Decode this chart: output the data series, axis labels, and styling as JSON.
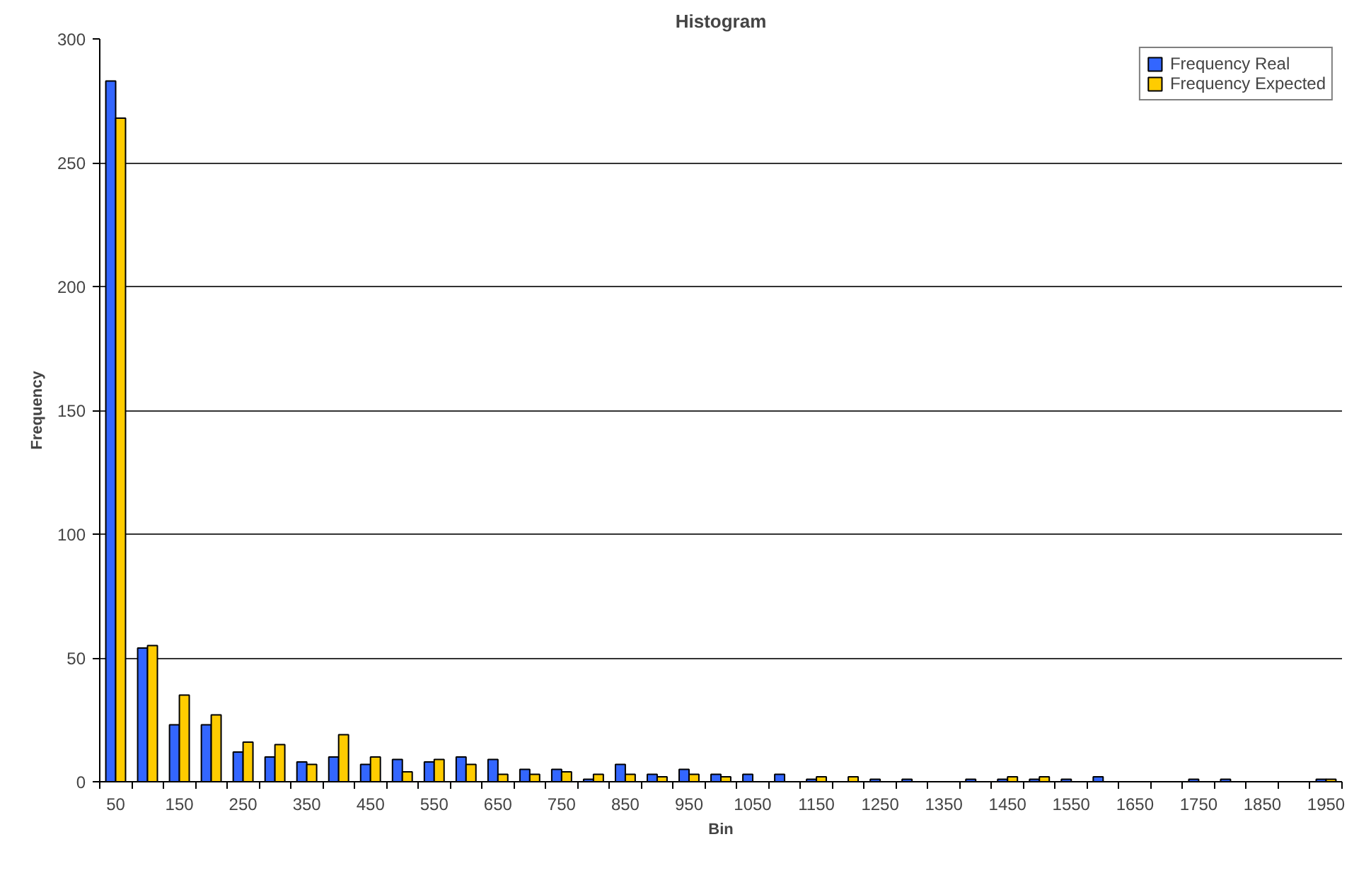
{
  "chart_data": {
    "type": "bar",
    "title": "Histogram",
    "xlabel": "Bin",
    "ylabel": "Frequency",
    "categories": [
      "50",
      null,
      "150",
      null,
      "250",
      null,
      "350",
      null,
      "450",
      null,
      "550",
      null,
      "650",
      null,
      "750",
      null,
      "850",
      null,
      "950",
      null,
      "1050",
      null,
      "1150",
      null,
      "1250",
      null,
      "1350",
      null,
      "1450",
      null,
      "1550",
      null,
      "1650",
      null,
      "1750",
      null,
      "1850",
      null,
      "1950"
    ],
    "series": [
      {
        "name": "Frequency Real",
        "color": "#3366ff",
        "values": [
          283,
          54,
          23,
          23,
          12,
          10,
          8,
          10,
          7,
          9,
          8,
          10,
          9,
          5,
          5,
          1,
          7,
          3,
          5,
          3,
          3,
          3,
          1,
          0,
          1,
          1,
          0,
          1,
          1,
          1,
          1,
          2,
          0,
          0,
          1,
          1,
          0,
          0,
          1
        ]
      },
      {
        "name": "Frequency Expected",
        "color": "#ffcc00",
        "values": [
          268,
          55,
          35,
          27,
          16,
          15,
          7,
          19,
          10,
          4,
          9,
          7,
          3,
          3,
          4,
          3,
          3,
          2,
          3,
          2,
          0,
          0,
          2,
          2,
          0,
          0,
          0,
          0,
          2,
          2,
          0,
          0,
          0,
          0,
          0,
          0,
          0,
          0,
          1
        ]
      }
    ],
    "ylim": [
      0,
      300
    ],
    "yticks": [
      0,
      50,
      100,
      150,
      200,
      250,
      300
    ],
    "grid": "y",
    "legend": "top right"
  }
}
